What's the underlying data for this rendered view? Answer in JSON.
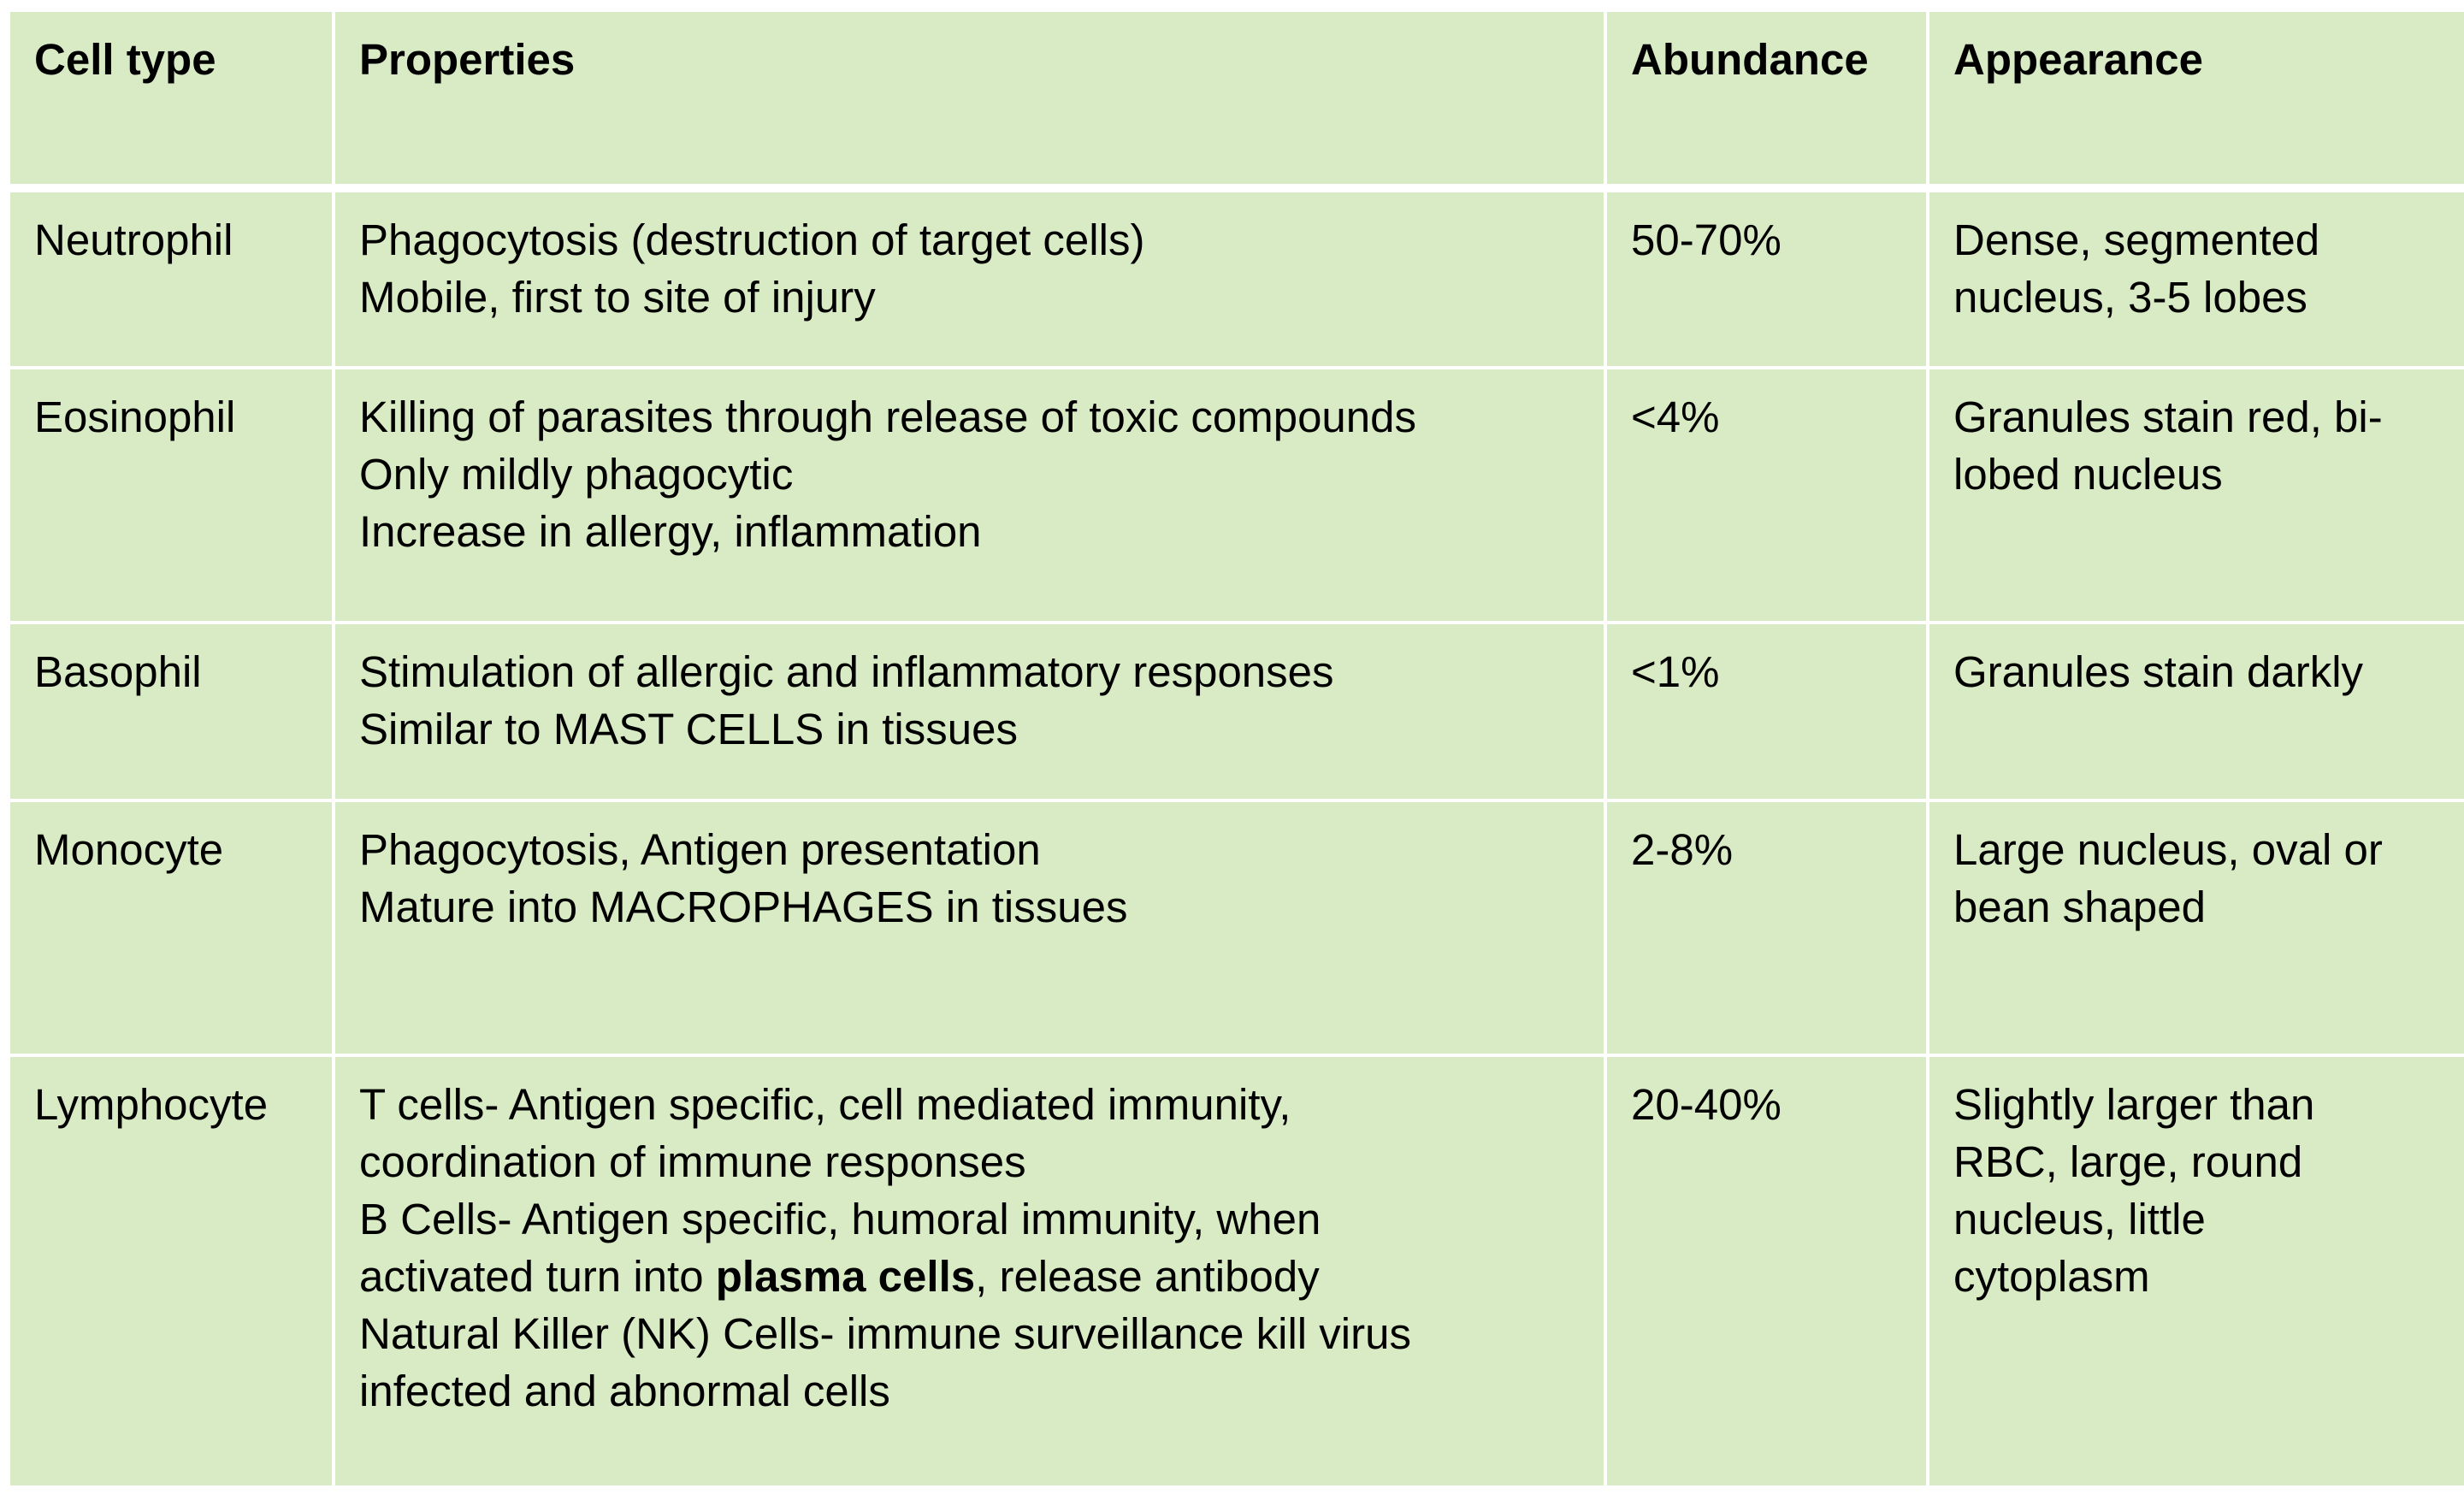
{
  "table": {
    "headers": {
      "cell_type": "Cell type",
      "properties": "Properties",
      "abundance": "Abundance",
      "appearance": "Appearance"
    },
    "rows": [
      {
        "cell_type": "Neutrophil",
        "properties": [
          "Phagocytosis (destruction of target cells)",
          "Mobile, first to site of injury"
        ],
        "abundance": "50-70%",
        "appearance": [
          "Dense, segmented",
          "nucleus, 3-5 lobes"
        ]
      },
      {
        "cell_type": "Eosinophil",
        "properties": [
          "Killing of parasites through release of toxic compounds",
          "Only mildly phagocytic",
          "Increase in allergy, inflammation"
        ],
        "abundance": "<4%",
        "appearance": [
          "Granules stain red, bi-",
          "lobed nucleus"
        ]
      },
      {
        "cell_type": "Basophil",
        "properties": [
          "Stimulation of allergic and inflammatory responses",
          "Similar to MAST CELLS in tissues"
        ],
        "abundance": "<1%",
        "appearance": [
          "Granules stain darkly"
        ]
      },
      {
        "cell_type": "Monocyte",
        "properties": [
          "Phagocytosis, Antigen presentation",
          "Mature into MACROPHAGES in tissues"
        ],
        "abundance": "2-8%",
        "appearance": [
          "Large nucleus, oval or",
          "bean shaped"
        ]
      },
      {
        "cell_type": "Lymphocyte",
        "properties": [
          "T cells- Antigen specific, cell mediated immunity,",
          "coordination of immune responses",
          "B Cells- Antigen specific, humoral immunity, when",
          {
            "before": "activated turn into ",
            "bold": "plasma cells",
            "after": ", release antibody"
          },
          "Natural Killer (NK) Cells- immune surveillance kill virus",
          "infected and abnormal cells"
        ],
        "abundance": "20-40%",
        "appearance": [
          "Slightly larger than",
          "RBC, large, round",
          "nucleus, little",
          "cytoplasm"
        ]
      }
    ]
  },
  "colors": {
    "cell_background": "#d8ebc4",
    "grid_lines": "#ffffff",
    "text": "#000000"
  }
}
